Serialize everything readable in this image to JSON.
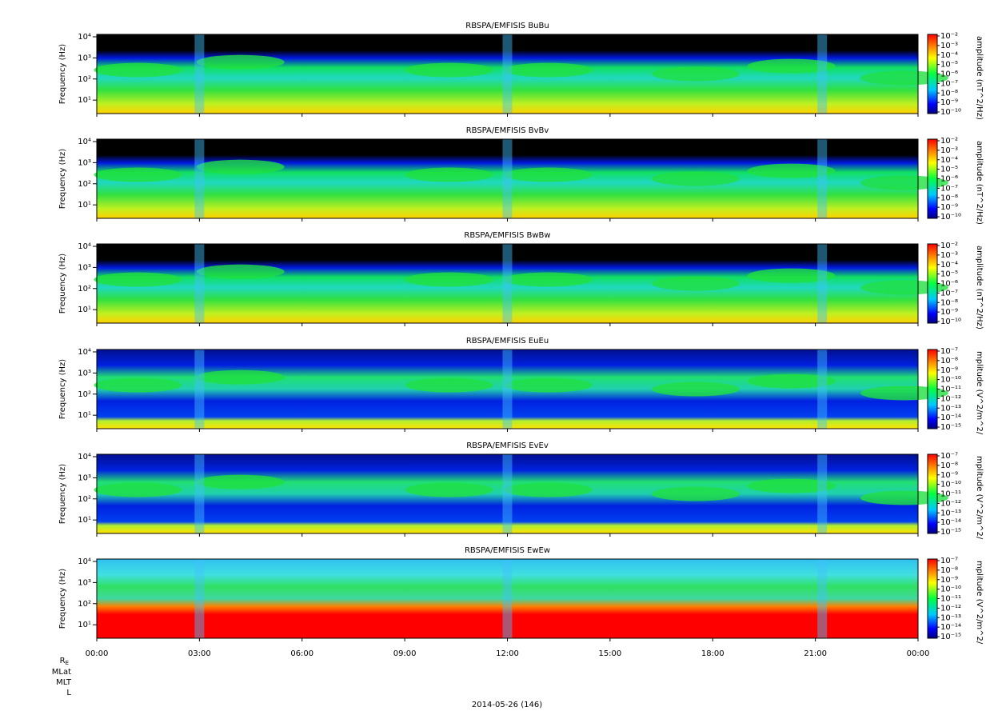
{
  "chart_data": [
    {
      "type": "spectrogram",
      "title": "RBSPA/EMFISIS  BuBu",
      "y_label": "Frequency (Hz)",
      "log_y": true,
      "ylim": [
        2.3,
        13000
      ],
      "yticks": [
        {
          "value": 10,
          "label": "10¹"
        },
        {
          "value": 100,
          "label": "10²"
        },
        {
          "value": 1000,
          "label": "10³"
        },
        {
          "value": 10000,
          "label": "10⁴"
        }
      ],
      "colorbar_label": "amplitude (nT^2/Hz)",
      "zlim": [
        1e-10,
        0.01
      ],
      "zticks": [
        {
          "value": 0.01,
          "label": "10⁻²"
        },
        {
          "value": 0.001,
          "label": "10⁻³"
        },
        {
          "value": 0.0001,
          "label": "10⁻⁴"
        },
        {
          "value": 1e-05,
          "label": "10⁻⁵"
        },
        {
          "value": 1e-06,
          "label": "10⁻⁶"
        },
        {
          "value": 1e-07,
          "label": "10⁻⁷"
        },
        {
          "value": 1e-08,
          "label": "10⁻⁸"
        },
        {
          "value": 1e-09,
          "label": "10⁻⁹"
        },
        {
          "value": 1e-10,
          "label": "10⁻¹⁰"
        }
      ]
    },
    {
      "type": "spectrogram",
      "title": "RBSPA/EMFISIS  BvBv",
      "y_label": "Frequency (Hz)",
      "log_y": true,
      "ylim": [
        2.3,
        13000
      ],
      "yticks": [
        {
          "value": 10,
          "label": "10¹"
        },
        {
          "value": 100,
          "label": "10²"
        },
        {
          "value": 1000,
          "label": "10³"
        },
        {
          "value": 10000,
          "label": "10⁴"
        }
      ],
      "colorbar_label": "amplitude (nT^2/Hz)",
      "zlim": [
        1e-10,
        0.01
      ],
      "zticks": [
        {
          "value": 0.01,
          "label": "10⁻²"
        },
        {
          "value": 0.001,
          "label": "10⁻³"
        },
        {
          "value": 0.0001,
          "label": "10⁻⁴"
        },
        {
          "value": 1e-05,
          "label": "10⁻⁵"
        },
        {
          "value": 1e-06,
          "label": "10⁻⁶"
        },
        {
          "value": 1e-07,
          "label": "10⁻⁷"
        },
        {
          "value": 1e-08,
          "label": "10⁻⁸"
        },
        {
          "value": 1e-09,
          "label": "10⁻⁹"
        },
        {
          "value": 1e-10,
          "label": "10⁻¹⁰"
        }
      ]
    },
    {
      "type": "spectrogram",
      "title": "RBSPA/EMFISIS  BwBw",
      "y_label": "Frequency (Hz)",
      "log_y": true,
      "ylim": [
        2.3,
        13000
      ],
      "yticks": [
        {
          "value": 10,
          "label": "10¹"
        },
        {
          "value": 100,
          "label": "10²"
        },
        {
          "value": 1000,
          "label": "10³"
        },
        {
          "value": 10000,
          "label": "10⁴"
        }
      ],
      "colorbar_label": "amplitude (nT^2/Hz)",
      "zlim": [
        1e-10,
        0.01
      ],
      "zticks": [
        {
          "value": 0.01,
          "label": "10⁻²"
        },
        {
          "value": 0.001,
          "label": "10⁻³"
        },
        {
          "value": 0.0001,
          "label": "10⁻⁴"
        },
        {
          "value": 1e-05,
          "label": "10⁻⁵"
        },
        {
          "value": 1e-06,
          "label": "10⁻⁶"
        },
        {
          "value": 1e-07,
          "label": "10⁻⁷"
        },
        {
          "value": 1e-08,
          "label": "10⁻⁸"
        },
        {
          "value": 1e-09,
          "label": "10⁻⁹"
        },
        {
          "value": 1e-10,
          "label": "10⁻¹⁰"
        }
      ]
    },
    {
      "type": "spectrogram",
      "title": "RBSPA/EMFISIS  EuEu",
      "y_label": "Frequency (Hz)",
      "log_y": true,
      "ylim": [
        2.3,
        13000
      ],
      "yticks": [
        {
          "value": 10,
          "label": "10¹"
        },
        {
          "value": 100,
          "label": "10²"
        },
        {
          "value": 1000,
          "label": "10³"
        },
        {
          "value": 10000,
          "label": "10⁴"
        }
      ],
      "colorbar_label": "mplitude (V^2/m^2/",
      "zlim": [
        1e-15,
        1e-07
      ],
      "zticks": [
        {
          "value": 1e-07,
          "label": "10⁻⁷"
        },
        {
          "value": 1e-08,
          "label": "10⁻⁸"
        },
        {
          "value": 1e-09,
          "label": "10⁻⁹"
        },
        {
          "value": 1e-10,
          "label": "10⁻¹⁰"
        },
        {
          "value": 1e-11,
          "label": "10⁻¹¹"
        },
        {
          "value": 1e-12,
          "label": "10⁻¹²"
        },
        {
          "value": 1e-13,
          "label": "10⁻¹³"
        },
        {
          "value": 1e-14,
          "label": "10⁻¹⁴"
        },
        {
          "value": 1e-15,
          "label": "10⁻¹⁵"
        }
      ]
    },
    {
      "type": "spectrogram",
      "title": "RBSPA/EMFISIS  EvEv",
      "y_label": "Frequency (Hz)",
      "log_y": true,
      "ylim": [
        2.3,
        13000
      ],
      "yticks": [
        {
          "value": 10,
          "label": "10¹"
        },
        {
          "value": 100,
          "label": "10²"
        },
        {
          "value": 1000,
          "label": "10³"
        },
        {
          "value": 10000,
          "label": "10⁴"
        }
      ],
      "colorbar_label": "mplitude (V^2/m^2/",
      "zlim": [
        1e-15,
        1e-07
      ],
      "zticks": [
        {
          "value": 1e-07,
          "label": "10⁻⁷"
        },
        {
          "value": 1e-08,
          "label": "10⁻⁸"
        },
        {
          "value": 1e-09,
          "label": "10⁻⁹"
        },
        {
          "value": 1e-10,
          "label": "10⁻¹⁰"
        },
        {
          "value": 1e-11,
          "label": "10⁻¹¹"
        },
        {
          "value": 1e-12,
          "label": "10⁻¹²"
        },
        {
          "value": 1e-13,
          "label": "10⁻¹³"
        },
        {
          "value": 1e-14,
          "label": "10⁻¹⁴"
        },
        {
          "value": 1e-15,
          "label": "10⁻¹⁵"
        }
      ]
    },
    {
      "type": "spectrogram",
      "title": "RBSPA/EMFISIS  EwEw",
      "y_label": "Frequency (Hz)",
      "log_y": true,
      "ylim": [
        2.3,
        13000
      ],
      "yticks": [
        {
          "value": 10,
          "label": "10¹"
        },
        {
          "value": 100,
          "label": "10²"
        },
        {
          "value": 1000,
          "label": "10³"
        },
        {
          "value": 10000,
          "label": "10⁴"
        }
      ],
      "colorbar_label": "mplitude (V^2/m^2/",
      "zlim": [
        1e-15,
        1e-07
      ],
      "zticks": [
        {
          "value": 1e-07,
          "label": "10⁻⁷"
        },
        {
          "value": 1e-08,
          "label": "10⁻⁸"
        },
        {
          "value": 1e-09,
          "label": "10⁻⁹"
        },
        {
          "value": 1e-10,
          "label": "10⁻¹⁰"
        },
        {
          "value": 1e-11,
          "label": "10⁻¹¹"
        },
        {
          "value": 1e-12,
          "label": "10⁻¹²"
        },
        {
          "value": 1e-13,
          "label": "10⁻¹³"
        },
        {
          "value": 1e-14,
          "label": "10⁻¹⁴"
        },
        {
          "value": 1e-15,
          "label": "10⁻¹⁵"
        }
      ]
    }
  ],
  "time_axis": {
    "xlim": [
      0,
      24
    ],
    "xticks": [
      {
        "value": 0,
        "label": "00:00"
      },
      {
        "value": 3,
        "label": "03:00"
      },
      {
        "value": 6,
        "label": "06:00"
      },
      {
        "value": 9,
        "label": "09:00"
      },
      {
        "value": 12,
        "label": "12:00"
      },
      {
        "value": 15,
        "label": "15:00"
      },
      {
        "value": 18,
        "label": "18:00"
      },
      {
        "value": 21,
        "label": "21:00"
      },
      {
        "value": 24,
        "label": "00:00"
      }
    ]
  },
  "ephemeris_labels": [
    "R",
    "MLat",
    "MLT",
    "L"
  ],
  "ephemeris_subscript": "E",
  "date_label": "2014-05-26 (146)"
}
